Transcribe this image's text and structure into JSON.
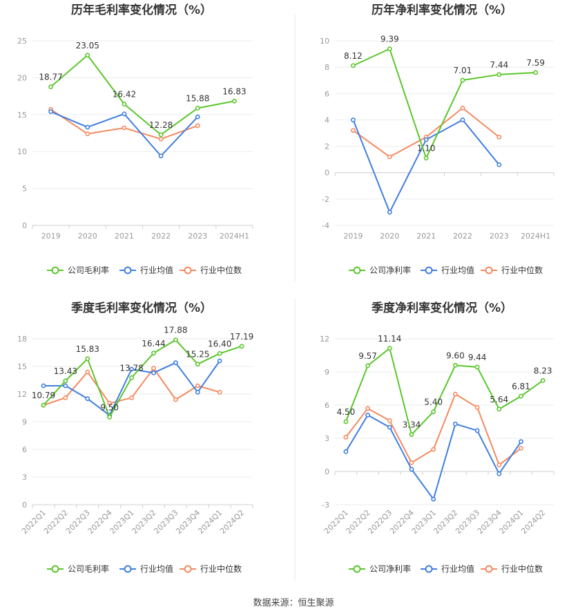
{
  "source": "数据来源：恒生聚源",
  "colors": {
    "company": "#5ac62b",
    "industry_avg": "#3f7ee0",
    "industry_median": "#f4895f"
  },
  "chart_data": [
    {
      "type": "line",
      "title": "历年毛利率变化情况（%）",
      "categories": [
        "2019",
        "2020",
        "2021",
        "2022",
        "2023",
        "2024H1"
      ],
      "ylim": [
        0,
        25
      ],
      "yticks": [
        0,
        5,
        10,
        15,
        20,
        25
      ],
      "ytick_labels": [
        "0",
        "5",
        "10",
        "15",
        "20",
        "25"
      ],
      "grid": true,
      "legend": "bottom",
      "series": [
        {
          "name": "公司毛利率",
          "values": [
            18.77,
            23.05,
            16.42,
            12.28,
            15.88,
            16.83
          ],
          "labels": [
            "18.77",
            "23.05",
            "16.42",
            "12.28",
            "15.88",
            "16.83"
          ]
        },
        {
          "name": "行业均值",
          "values": [
            15.4,
            13.3,
            15.1,
            9.4,
            14.7,
            null
          ]
        },
        {
          "name": "行业中位数",
          "values": [
            15.7,
            12.4,
            13.2,
            11.7,
            13.5,
            null
          ]
        }
      ]
    },
    {
      "type": "line",
      "title": "历年净利率变化情况（%）",
      "categories": [
        "2019",
        "2020",
        "2021",
        "2022",
        "2023",
        "2024H1"
      ],
      "ylim": [
        -4,
        10
      ],
      "yticks": [
        -4,
        -2,
        0,
        2,
        4,
        6,
        8,
        10
      ],
      "ytick_labels": [
        "-4",
        "-2",
        "0",
        "2",
        "4",
        "6",
        "8",
        "10"
      ],
      "grid": true,
      "legend": "bottom",
      "series": [
        {
          "name": "公司净利率",
          "values": [
            8.12,
            9.39,
            1.1,
            7.01,
            7.44,
            7.59
          ],
          "labels": [
            "8.12",
            "9.39",
            "1.10",
            "7.01",
            "7.44",
            "7.59"
          ]
        },
        {
          "name": "行业均值",
          "values": [
            4.0,
            -3.0,
            2.5,
            4.0,
            0.6,
            null
          ]
        },
        {
          "name": "行业中位数",
          "values": [
            3.2,
            1.2,
            2.7,
            4.9,
            2.7,
            null
          ]
        }
      ]
    },
    {
      "type": "line",
      "title": "季度毛利率变化情况（%）",
      "categories": [
        "2022Q1",
        "2022Q2",
        "2022Q3",
        "2022Q4",
        "2023Q1",
        "2023Q2",
        "2023Q3",
        "2023Q4",
        "2024Q1",
        "2024Q2"
      ],
      "ylim": [
        0,
        18
      ],
      "yticks": [
        0,
        3,
        6,
        9,
        12,
        15,
        18
      ],
      "ytick_labels": [
        "0",
        "3",
        "6",
        "9",
        "12",
        "15",
        "18"
      ],
      "grid": true,
      "legend": "bottom",
      "series": [
        {
          "name": "公司毛利率",
          "values": [
            10.79,
            13.43,
            15.83,
            9.5,
            13.78,
            16.44,
            17.88,
            15.25,
            16.4,
            17.19
          ],
          "labels": [
            "10.79",
            "13.43",
            "15.83",
            "9.50",
            "13.78",
            "16.44",
            "17.88",
            "15.25",
            "16.40",
            "17.19"
          ]
        },
        {
          "name": "行业均值",
          "values": [
            12.9,
            12.9,
            11.5,
            9.7,
            14.7,
            14.3,
            15.4,
            12.2,
            15.6,
            null
          ]
        },
        {
          "name": "行业中位数",
          "values": [
            10.8,
            11.6,
            14.4,
            11.0,
            11.6,
            14.8,
            11.4,
            12.9,
            12.2,
            null
          ]
        }
      ]
    },
    {
      "type": "line",
      "title": "季度净利率变化情况（%）",
      "categories": [
        "2022Q1",
        "2022Q2",
        "2022Q3",
        "2022Q4",
        "2023Q1",
        "2023Q2",
        "2023Q3",
        "2023Q4",
        "2024Q1",
        "2024Q2"
      ],
      "ylim": [
        -3,
        12
      ],
      "yticks": [
        -3,
        0,
        3,
        6,
        9,
        12
      ],
      "ytick_labels": [
        "-3",
        "0",
        "3",
        "6",
        "9",
        "12"
      ],
      "grid": true,
      "legend": "bottom",
      "series": [
        {
          "name": "公司净利率",
          "values": [
            4.5,
            9.57,
            11.14,
            3.34,
            5.4,
            9.6,
            9.44,
            5.64,
            6.81,
            8.23
          ],
          "labels": [
            "4.50",
            "9.57",
            "11.14",
            "3.34",
            "5.40",
            "9.60",
            "9.44",
            "5.64",
            "6.81",
            "8.23"
          ]
        },
        {
          "name": "行业均值",
          "values": [
            1.8,
            5.1,
            4.0,
            0.2,
            -2.5,
            4.3,
            3.7,
            -0.2,
            2.7,
            null
          ]
        },
        {
          "name": "行业中位数",
          "values": [
            3.1,
            5.7,
            4.6,
            0.8,
            2.0,
            7.0,
            5.8,
            0.6,
            2.1,
            null
          ]
        }
      ]
    }
  ]
}
